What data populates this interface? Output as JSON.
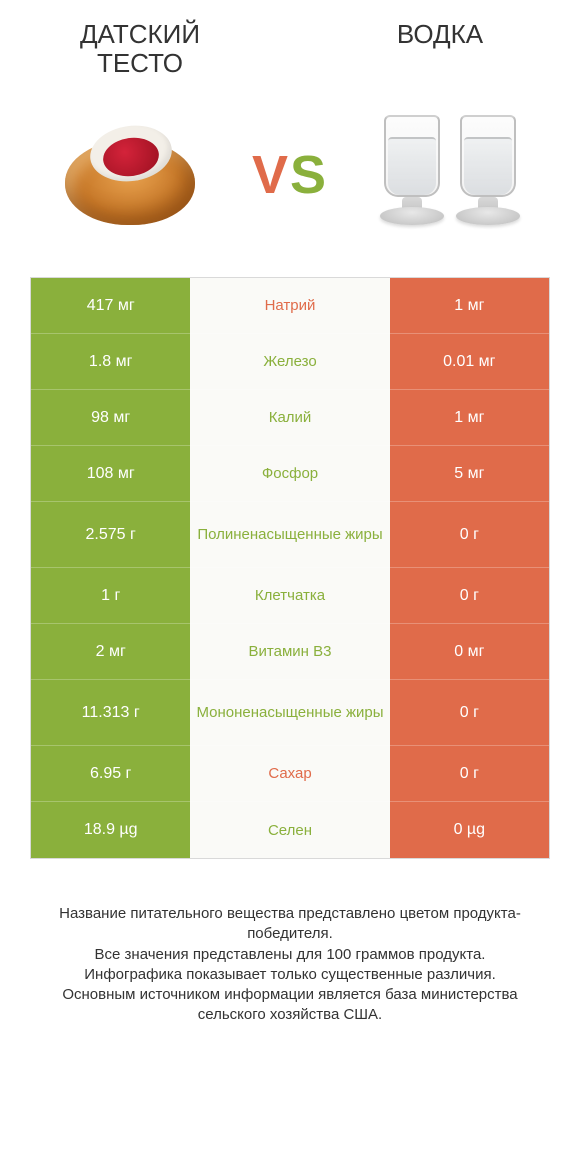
{
  "colors": {
    "green": "#8ab03c",
    "orange": "#e06b4a",
    "neutral_bg": "#fafaf7",
    "border": "#d9d9d9",
    "text": "#333333",
    "white": "#ffffff"
  },
  "header": {
    "left_title": "ДАТСКИЙ ТЕСТО",
    "right_title": "ВОДКА",
    "vs_v": "V",
    "vs_s": "S"
  },
  "table": {
    "left_bg": "#8ab03c",
    "right_bg": "#e06b4a",
    "rows": [
      {
        "left": "417 мг",
        "label": "Натрий",
        "right": "1 мг",
        "winner": "right",
        "tall": false
      },
      {
        "left": "1.8 мг",
        "label": "Железо",
        "right": "0.01 мг",
        "winner": "left",
        "tall": false
      },
      {
        "left": "98 мг",
        "label": "Калий",
        "right": "1 мг",
        "winner": "left",
        "tall": false
      },
      {
        "left": "108 мг",
        "label": "Фосфор",
        "right": "5 мг",
        "winner": "left",
        "tall": false
      },
      {
        "left": "2.575 г",
        "label": "Полиненасыщенные жиры",
        "right": "0 г",
        "winner": "left",
        "tall": true
      },
      {
        "left": "1 г",
        "label": "Клетчатка",
        "right": "0 г",
        "winner": "left",
        "tall": false
      },
      {
        "left": "2 мг",
        "label": "Витамин B3",
        "right": "0 мг",
        "winner": "left",
        "tall": false
      },
      {
        "left": "11.313 г",
        "label": "Мононенасыщенные жиры",
        "right": "0 г",
        "winner": "left",
        "tall": true
      },
      {
        "left": "6.95 г",
        "label": "Сахар",
        "right": "0 г",
        "winner": "right",
        "tall": false
      },
      {
        "left": "18.9 µg",
        "label": "Селен",
        "right": "0 µg",
        "winner": "left",
        "tall": false
      }
    ]
  },
  "footnote": {
    "line1": "Название питательного вещества представлено цветом продукта-победителя.",
    "line2": "Все значения представлены для 100 граммов продукта.",
    "line3": "Инфографика показывает только существенные различия.",
    "line4": "Основным источником информации является база министерства сельского хозяйства США."
  }
}
